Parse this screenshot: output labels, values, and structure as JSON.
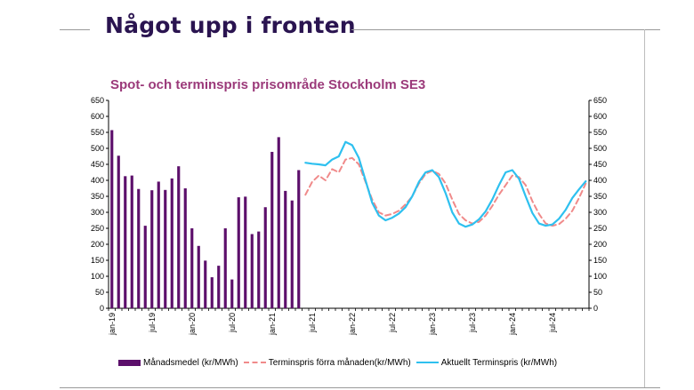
{
  "slide": {
    "title": "Något upp i fronten"
  },
  "chart_data": {
    "type": "bar",
    "title": "Spot- och terminspris prisområde Stockholm SE3",
    "xlabel": "",
    "ylabel": "",
    "ylim": [
      0,
      650
    ],
    "y_ticks": [
      0,
      50,
      100,
      150,
      200,
      250,
      300,
      350,
      400,
      450,
      500,
      550,
      600,
      650
    ],
    "x_tick_labels": [
      "jan-19",
      "jul-19",
      "jan-20",
      "jul-20",
      "jan-21",
      "jul-21",
      "jan-22",
      "jul-22",
      "jan-23",
      "jul-23",
      "jan-24",
      "jul-24"
    ],
    "legend_position": "bottom",
    "grid": false,
    "series": [
      {
        "name": "Månadsmedel (kr/MWh)",
        "type": "bar",
        "color": "#5c0f6b",
        "x": [
          "2019-01",
          "2019-02",
          "2019-03",
          "2019-04",
          "2019-05",
          "2019-06",
          "2019-07",
          "2019-08",
          "2019-09",
          "2019-10",
          "2019-11",
          "2019-12",
          "2020-01",
          "2020-02",
          "2020-03",
          "2020-04",
          "2020-05",
          "2020-06",
          "2020-07",
          "2020-08",
          "2020-09",
          "2020-10",
          "2020-11",
          "2020-12",
          "2021-01",
          "2021-02",
          "2021-03",
          "2021-04",
          "2021-05",
          "2021-06"
        ],
        "values": [
          557,
          477,
          413,
          415,
          373,
          258,
          369,
          396,
          370,
          406,
          444,
          375,
          250,
          195,
          149,
          97,
          133,
          250,
          90,
          347,
          349,
          232,
          240,
          316,
          489,
          535,
          367,
          337,
          432,
          0
        ]
      },
      {
        "name": "Terminspris förra månaden(kr/MWh)",
        "type": "line",
        "style": "dashed",
        "color": "#f08a8a",
        "x": [
          "2021-06",
          "2021-07",
          "2021-08",
          "2021-09",
          "2021-10",
          "2021-11",
          "2021-12",
          "2022-01",
          "2022-02",
          "2022-03",
          "2022-04",
          "2022-05",
          "2022-06",
          "2022-07",
          "2022-08",
          "2022-09",
          "2022-10",
          "2022-11",
          "2022-12",
          "2023-01",
          "2023-02",
          "2023-03",
          "2023-04",
          "2023-05",
          "2023-06",
          "2023-07",
          "2023-08",
          "2023-09",
          "2023-10",
          "2023-11",
          "2023-12",
          "2024-01",
          "2024-02",
          "2024-03",
          "2024-04",
          "2024-05",
          "2024-06",
          "2024-07",
          "2024-08",
          "2024-09",
          "2024-10",
          "2024-11",
          "2024-12"
        ],
        "values": [
          355,
          395,
          415,
          400,
          435,
          425,
          465,
          470,
          450,
          395,
          340,
          300,
          290,
          295,
          305,
          325,
          350,
          390,
          420,
          430,
          420,
          390,
          340,
          295,
          275,
          265,
          270,
          290,
          320,
          355,
          385,
          415,
          410,
          385,
          335,
          295,
          265,
          258,
          263,
          280,
          305,
          345,
          390
        ]
      },
      {
        "name": "Aktuellt Terminspris (kr/MWh)",
        "type": "line",
        "style": "solid",
        "color": "#2ec0ef",
        "x": [
          "2021-06",
          "2021-07",
          "2021-08",
          "2021-09",
          "2021-10",
          "2021-11",
          "2021-12",
          "2022-01",
          "2022-02",
          "2022-03",
          "2022-04",
          "2022-05",
          "2022-06",
          "2022-07",
          "2022-08",
          "2022-09",
          "2022-10",
          "2022-11",
          "2022-12",
          "2023-01",
          "2023-02",
          "2023-03",
          "2023-04",
          "2023-05",
          "2023-06",
          "2023-07",
          "2023-08",
          "2023-09",
          "2023-10",
          "2023-11",
          "2023-12",
          "2024-01",
          "2024-02",
          "2024-03",
          "2024-04",
          "2024-05",
          "2024-06",
          "2024-07",
          "2024-08",
          "2024-09",
          "2024-10",
          "2024-11",
          "2024-12"
        ],
        "values": [
          455,
          452,
          450,
          447,
          465,
          475,
          520,
          510,
          470,
          400,
          330,
          290,
          275,
          283,
          296,
          316,
          350,
          395,
          425,
          432,
          410,
          360,
          300,
          265,
          255,
          262,
          278,
          303,
          340,
          385,
          425,
          432,
          405,
          350,
          298,
          265,
          258,
          262,
          280,
          308,
          345,
          372,
          397
        ]
      }
    ]
  }
}
